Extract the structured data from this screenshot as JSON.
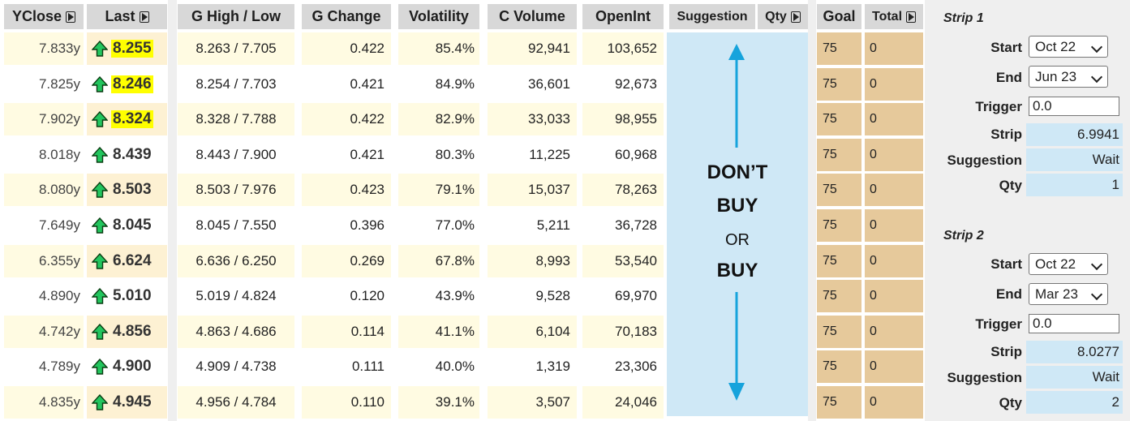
{
  "headers": {
    "yclose": "YClose",
    "last": "Last",
    "g_high_low": "G High / Low",
    "g_change": "G Change",
    "volatility": "Volatility",
    "c_volume": "C Volume",
    "openint": "OpenInt",
    "suggestion": "Suggestion",
    "qty": "Qty",
    "goal": "Goal",
    "total": "Total"
  },
  "rows": [
    {
      "yclose": "7.833y",
      "last": "8.255",
      "highlight": true,
      "g_high_low": "8.263 / 7.705",
      "g_change": "0.422",
      "volatility": "85.4%",
      "c_volume": "92,941",
      "openint": "103,652",
      "goal": "75",
      "total": "0"
    },
    {
      "yclose": "7.825y",
      "last": "8.246",
      "highlight": true,
      "g_high_low": "8.254 / 7.703",
      "g_change": "0.421",
      "volatility": "84.9%",
      "c_volume": "36,601",
      "openint": "92,673",
      "goal": "75",
      "total": "0"
    },
    {
      "yclose": "7.902y",
      "last": "8.324",
      "highlight": true,
      "g_high_low": "8.328 / 7.788",
      "g_change": "0.422",
      "volatility": "82.9%",
      "c_volume": "33,033",
      "openint": "98,955",
      "goal": "75",
      "total": "0"
    },
    {
      "yclose": "8.018y",
      "last": "8.439",
      "highlight": false,
      "g_high_low": "8.443 / 7.900",
      "g_change": "0.421",
      "volatility": "80.3%",
      "c_volume": "11,225",
      "openint": "60,968",
      "goal": "75",
      "total": "0"
    },
    {
      "yclose": "8.080y",
      "last": "8.503",
      "highlight": false,
      "g_high_low": "8.503 / 7.976",
      "g_change": "0.423",
      "volatility": "79.1%",
      "c_volume": "15,037",
      "openint": "78,263",
      "goal": "75",
      "total": "0"
    },
    {
      "yclose": "7.649y",
      "last": "8.045",
      "highlight": false,
      "g_high_low": "8.045 / 7.550",
      "g_change": "0.396",
      "volatility": "77.0%",
      "c_volume": "5,211",
      "openint": "36,728",
      "goal": "75",
      "total": "0"
    },
    {
      "yclose": "6.355y",
      "last": "6.624",
      "highlight": false,
      "g_high_low": "6.636 / 6.250",
      "g_change": "0.269",
      "volatility": "67.8%",
      "c_volume": "8,993",
      "openint": "53,540",
      "goal": "75",
      "total": "0"
    },
    {
      "yclose": "4.890y",
      "last": "5.010",
      "highlight": false,
      "g_high_low": "5.019 / 4.824",
      "g_change": "0.120",
      "volatility": "43.9%",
      "c_volume": "9,528",
      "openint": "69,970",
      "goal": "75",
      "total": "0"
    },
    {
      "yclose": "4.742y",
      "last": "4.856",
      "highlight": false,
      "g_high_low": "4.863 / 4.686",
      "g_change": "0.114",
      "volatility": "41.1%",
      "c_volume": "6,104",
      "openint": "70,183",
      "goal": "75",
      "total": "0"
    },
    {
      "yclose": "4.789y",
      "last": "4.900",
      "highlight": false,
      "g_high_low": "4.909 / 4.738",
      "g_change": "0.111",
      "volatility": "40.0%",
      "c_volume": "1,319",
      "openint": "23,306",
      "goal": "75",
      "total": "0"
    },
    {
      "yclose": "4.835y",
      "last": "4.945",
      "highlight": false,
      "g_high_low": "4.956 / 4.784",
      "g_change": "0.110",
      "volatility": "39.1%",
      "c_volume": "3,507",
      "openint": "24,046",
      "goal": "75",
      "total": "0"
    }
  ],
  "overlay": {
    "line1": "DON’T",
    "line2": "BUY",
    "line3": "OR",
    "line4": "BUY"
  },
  "strip1": {
    "title": "Strip 1",
    "start_label": "Start",
    "start_value": "Oct 22",
    "end_label": "End",
    "end_value": "Jun 23",
    "trigger_label": "Trigger",
    "trigger_value": "0.0",
    "strip_label": "Strip",
    "strip_value": "6.9941",
    "suggestion_label": "Suggestion",
    "suggestion_value": "Wait",
    "qty_label": "Qty",
    "qty_value": "1"
  },
  "strip2": {
    "title": "Strip 2",
    "start_label": "Start",
    "start_value": "Oct 22",
    "end_label": "End",
    "end_value": "Mar 23",
    "trigger_label": "Trigger",
    "trigger_value": "0.0",
    "strip_label": "Strip",
    "strip_value": "8.0277",
    "suggestion_label": "Suggestion",
    "suggestion_value": "Wait",
    "qty_label": "Qty",
    "qty_value": "2"
  },
  "colors": {
    "header_bg": "#d8d8d8",
    "suggestion_bg": "#cfe8f6",
    "goal_bg": "#e6c99b",
    "highlight": "#ffff00",
    "up_arrow": "#22c55e",
    "overlay_arrow": "#16a3dc"
  },
  "icons": {
    "sort": "sort-arrow-icon",
    "up": "up-arrow-icon"
  }
}
